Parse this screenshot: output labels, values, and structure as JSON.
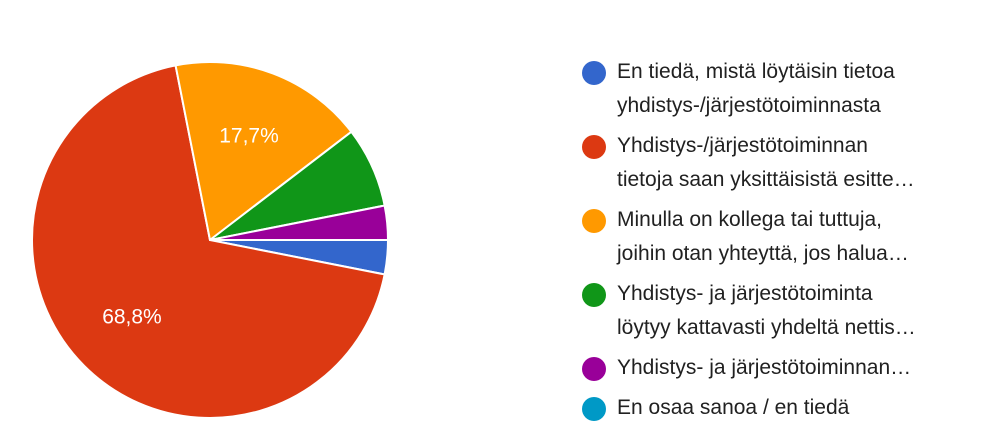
{
  "chart_data": {
    "type": "pie",
    "start_angle_deg": 90,
    "direction": "clockwise",
    "slices": [
      {
        "label": "En tiedä, mistä löytäisin tietoa yhdistys-/järjestötoiminnasta",
        "legend_lines": [
          "En tiedä, mistä löytäisin tietoa",
          "yhdistys-/järjestötoiminnasta"
        ],
        "value": 3.1,
        "value_label": "",
        "color": "#3366cc"
      },
      {
        "label": "Yhdistys-/järjestötoiminnan tietoja saan yksittäisistä esitte…",
        "legend_lines": [
          "Yhdistys-/järjestötoiminnan",
          "tietoja saan yksittäisistä esitte…"
        ],
        "value": 68.8,
        "value_label": "68,8%",
        "color": "#dc3912"
      },
      {
        "label": "Minulla on kollega tai tuttuja, joihin otan yhteyttä, jos halua…",
        "legend_lines": [
          "Minulla on kollega tai tuttuja,",
          "joihin otan yhteyttä, jos halua…"
        ],
        "value": 17.7,
        "value_label": "17,7%",
        "color": "#ff9900"
      },
      {
        "label": "Yhdistys- ja järjestötoiminta löytyy kattavasti yhdeltä nettis…",
        "legend_lines": [
          "Yhdistys- ja järjestötoiminta",
          "löytyy kattavasti yhdeltä nettis…"
        ],
        "value": 7.3,
        "value_label": "",
        "color": "#109618"
      },
      {
        "label": "Yhdistys- ja järjestötoiminnan…",
        "legend_lines": [
          "Yhdistys- ja järjestötoiminnan…"
        ],
        "value": 3.1,
        "value_label": "",
        "color": "#990099"
      },
      {
        "label": "En osaa sanoa / en tiedä",
        "legend_lines": [
          "En osaa sanoa / en tiedä"
        ],
        "value": 0,
        "value_label": "",
        "color": "#0099c6"
      }
    ],
    "legend_position": "right"
  }
}
